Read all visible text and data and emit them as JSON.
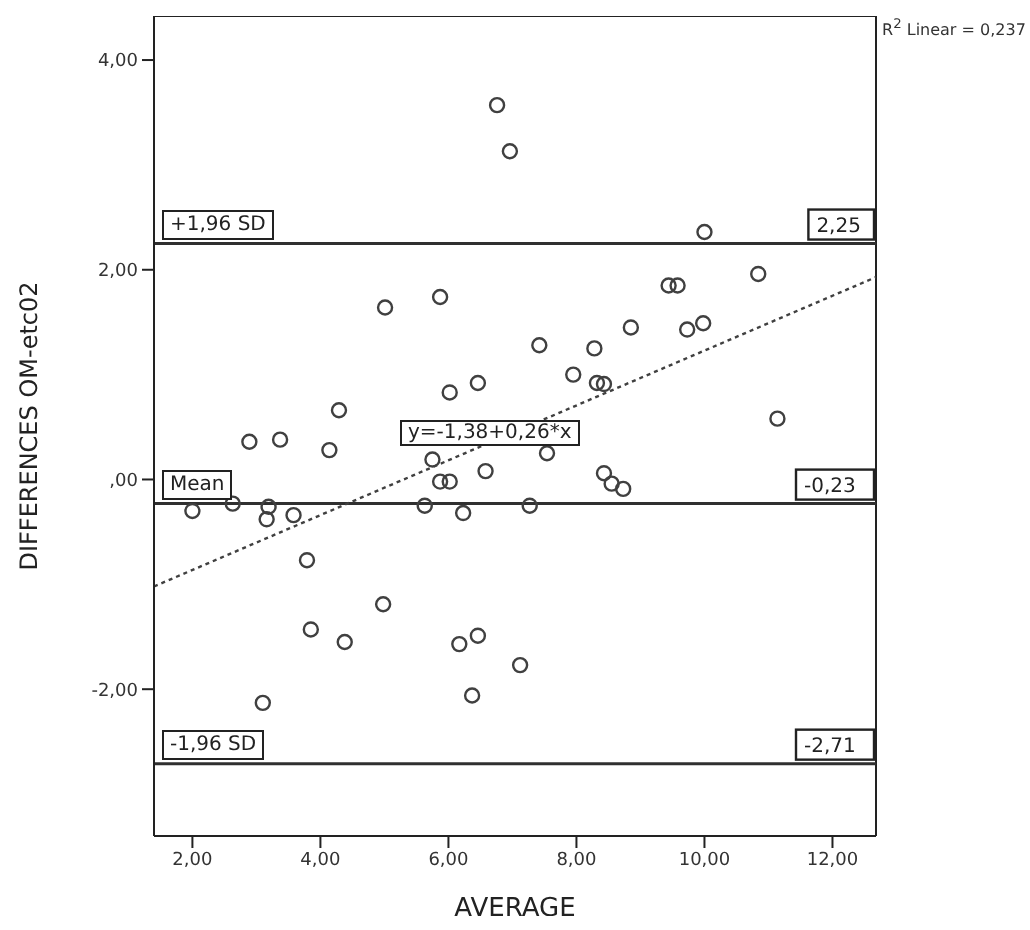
{
  "chart_data": {
    "type": "scatter",
    "xlabel": "AVERAGE",
    "ylabel": "DIFFERENCES OM-etc02",
    "xlim": [
      1.4,
      12.68
    ],
    "ylim": [
      -3.4,
      4.42
    ],
    "xticks": [
      {
        "value": 2,
        "label": "2,00"
      },
      {
        "value": 4,
        "label": "4,00"
      },
      {
        "value": 6,
        "label": "6,00"
      },
      {
        "value": 8,
        "label": "8,00"
      },
      {
        "value": 10,
        "label": "10,00"
      },
      {
        "value": 12,
        "label": "12,00"
      }
    ],
    "yticks": [
      {
        "value": -2,
        "label": "-2,00"
      },
      {
        "value": 0,
        "label": ",00"
      },
      {
        "value": 2,
        "label": "2,00"
      },
      {
        "value": 4,
        "label": "4,00"
      }
    ],
    "grid": false,
    "legend": false,
    "marker": "circle",
    "series": [
      {
        "color": "#404040",
        "x": [
          6.76,
          6.96,
          5.01,
          5.87,
          10.0,
          9.44,
          9.58,
          10.84,
          9.73,
          9.98,
          8.85,
          8.28,
          7.42,
          7.95,
          8.32,
          8.43,
          6.46,
          6.02,
          4.29,
          2.89,
          3.37,
          4.14,
          7.54,
          6.58,
          8.43,
          8.55,
          8.73,
          5.75,
          5.87,
          6.02,
          11.14,
          2.0,
          2.63,
          3.19,
          3.16,
          3.58,
          5.63,
          6.23,
          7.27,
          3.79,
          4.98,
          3.85,
          4.38,
          6.17,
          6.46,
          7.12,
          6.37,
          3.1
        ],
        "values": [
          3.57,
          3.13,
          1.64,
          1.74,
          2.36,
          1.85,
          1.85,
          1.96,
          1.43,
          1.49,
          1.45,
          1.25,
          1.28,
          1.0,
          0.92,
          0.91,
          0.92,
          0.83,
          0.66,
          0.36,
          0.38,
          0.28,
          0.25,
          0.08,
          0.06,
          -0.04,
          -0.09,
          0.19,
          -0.02,
          -0.02,
          0.58,
          -0.3,
          -0.23,
          -0.26,
          -0.38,
          -0.34,
          -0.25,
          -0.32,
          -0.25,
          -0.77,
          -1.19,
          -1.43,
          -1.55,
          -1.57,
          -1.49,
          -1.77,
          -2.06,
          -2.13
        ]
      },
      {
        "type": "line",
        "color": "#404040",
        "line_style": "dotted",
        "marker": "none",
        "x": [
          1.4,
          12.68
        ],
        "values": [
          -1.02,
          1.93
        ]
      }
    ],
    "ref_lines": [
      {
        "axis": "y",
        "value": 2.25,
        "label": "2,25",
        "color": "#303030"
      },
      {
        "axis": "y",
        "value": -0.23,
        "label": "-0,23",
        "color": "#303030"
      },
      {
        "axis": "y",
        "value": -2.71,
        "label": "-2,71",
        "color": "#303030"
      }
    ],
    "annotations": [
      {
        "text": "+1,96 SD",
        "y": 2.25
      },
      {
        "text": "Mean",
        "y": -0.23
      },
      {
        "text": "-1,96 SD",
        "y": -2.71
      },
      "y=-1,38+0,26*x",
      "R$^{2}$ Linear = 0,237"
    ]
  }
}
